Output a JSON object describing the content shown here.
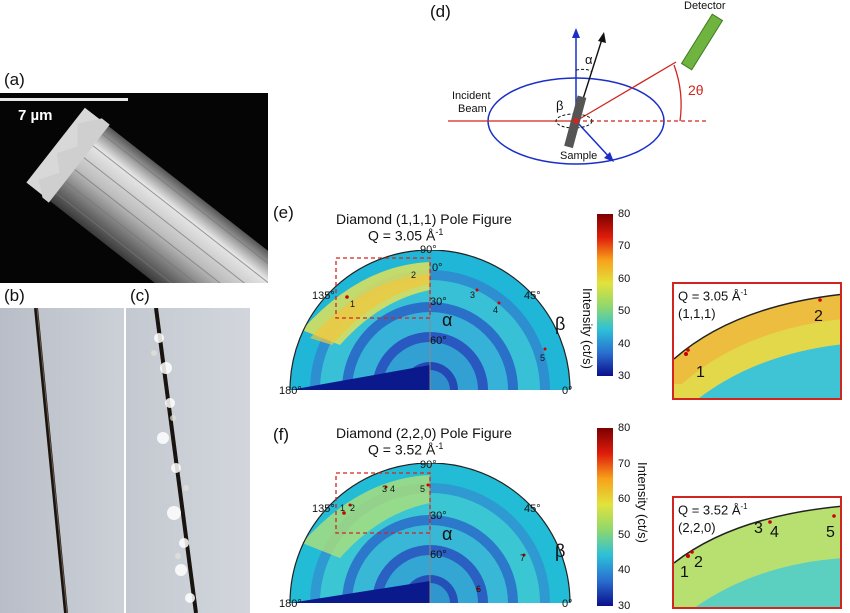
{
  "panels": {
    "a": {
      "label": "(a)",
      "scale_bar": "7 µm"
    },
    "b": {
      "label": "(b)"
    },
    "c": {
      "label": "(c)"
    },
    "d": {
      "label": "(d)",
      "detector": "Detector",
      "incident_line1": "Incident",
      "incident_line2": "Beam",
      "alpha": "α",
      "beta": "β",
      "two_theta": "2θ",
      "sample": "Sample"
    },
    "e": {
      "label": "(e)",
      "title": "Diamond (1,1,1) Pole Figure",
      "q_text": "Q = 3.05 Å",
      "q_sup": "-1",
      "alpha": "α",
      "beta": "β",
      "angles": {
        "a90": "90°",
        "a135": "135°",
        "a45": "45°",
        "a180": "180°",
        "a0": "0°",
        "r0": "0°",
        "r30": "30°",
        "r60": "60°"
      },
      "points": [
        "1",
        "2",
        "3",
        "4",
        "5"
      ],
      "inset_q": "Q = 3.05 Å",
      "inset_sup": "-1",
      "inset_hkl": "(1,1,1)",
      "inset_points": [
        "1",
        "2"
      ]
    },
    "f": {
      "label": "(f)",
      "title": "Diamond (2,2,0) Pole Figure",
      "q_text": "Q = 3.52 Å",
      "q_sup": "-1",
      "alpha": "α",
      "beta": "β",
      "angles": {
        "a90": "90°",
        "a135": "135°",
        "a45": "45°",
        "a180": "180°",
        "a0": "0°",
        "r30": "30°",
        "r60": "60°"
      },
      "points": [
        "1",
        "2",
        "3",
        "4",
        "5",
        "7",
        "6"
      ],
      "inset_q": "Q = 3.52 Å",
      "inset_sup": "-1",
      "inset_hkl": "(2,2,0)",
      "inset_points": [
        "1",
        "2",
        "3",
        "4",
        "5"
      ]
    }
  },
  "colorbar": {
    "title": "Intensity (ct/s)",
    "ticks": [
      "80",
      "70",
      "60",
      "50",
      "40",
      "30"
    ],
    "min": 30,
    "max": 80
  },
  "colors": {
    "accent_red": "#d0261f",
    "beam_blue": "#1a2fc8",
    "detector_green": "#6fb43f"
  }
}
